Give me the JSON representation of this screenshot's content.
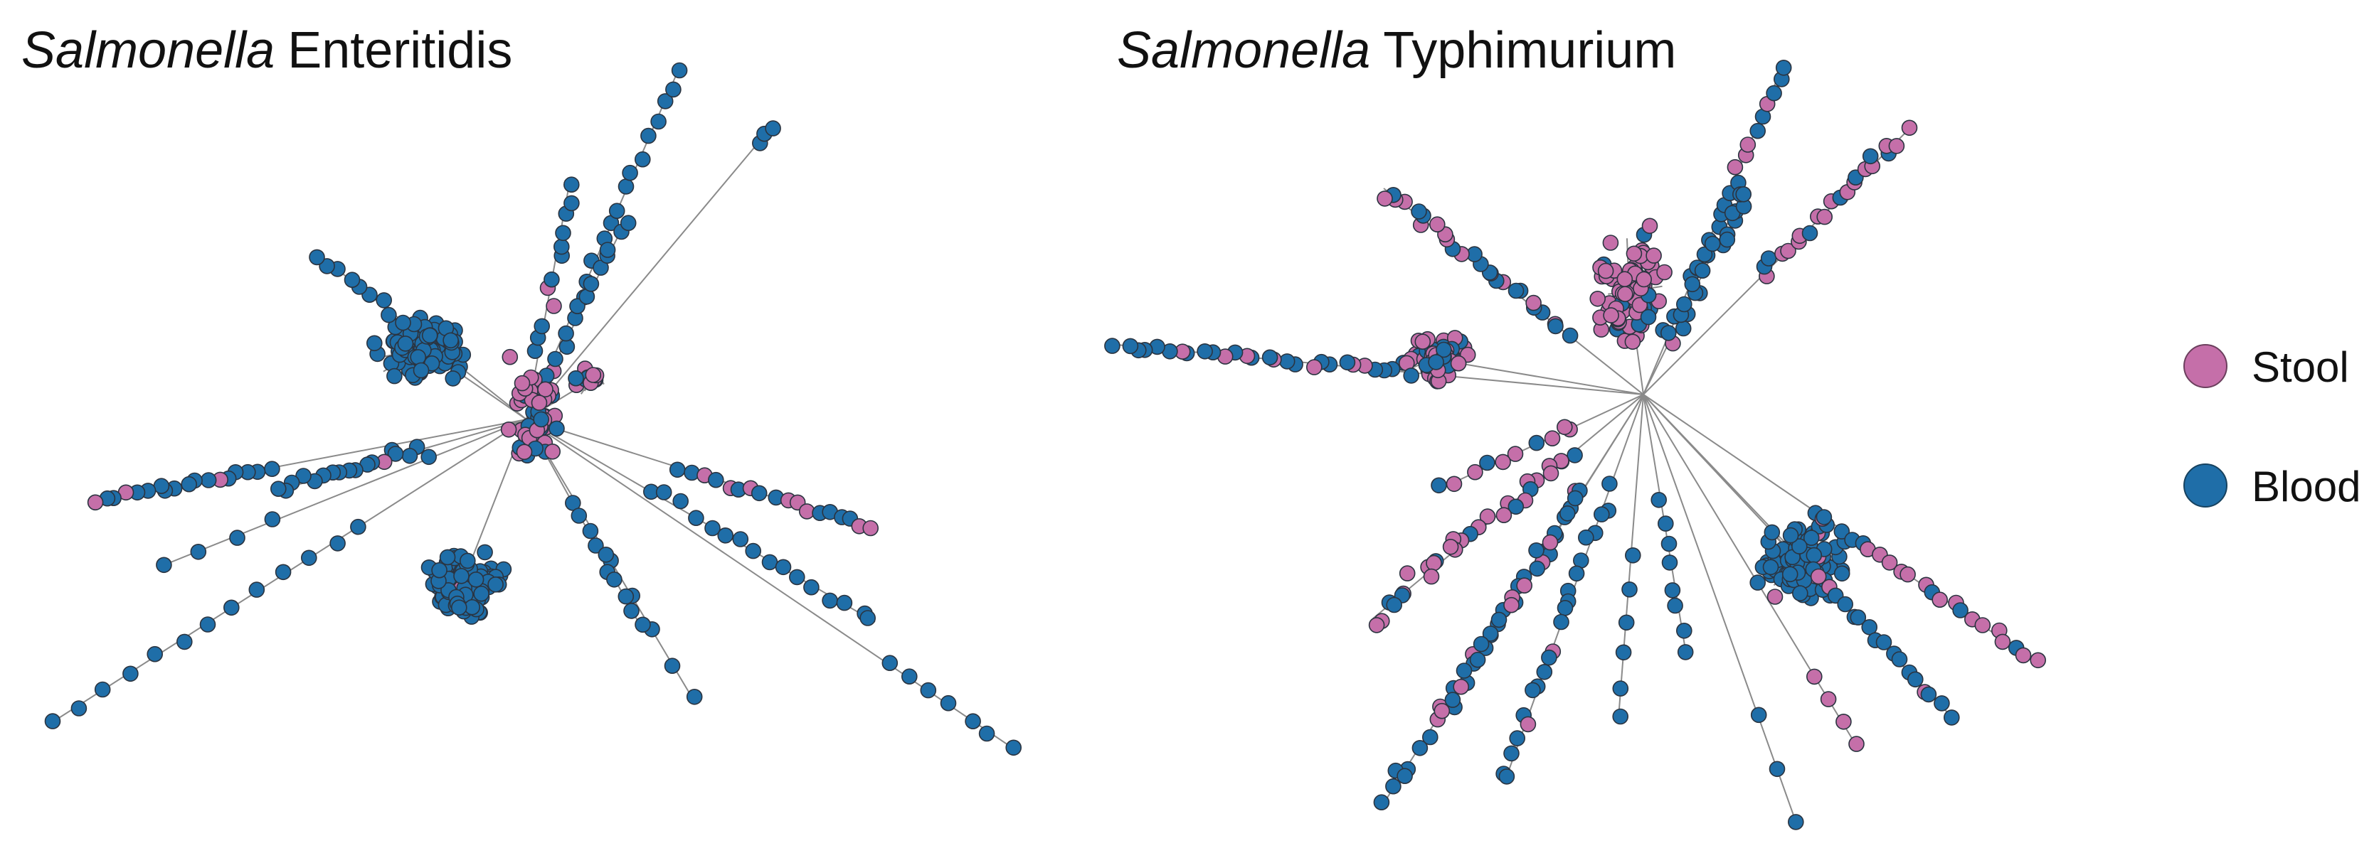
{
  "panels": [
    {
      "title_italic": "Salmonella",
      "title_rest": "Enteritidis"
    },
    {
      "title_italic": "Salmonella",
      "title_rest": "Typhimurium"
    }
  ],
  "legend": [
    {
      "label": "Stool",
      "color": "#c56fa9"
    },
    {
      "label": "Blood",
      "color": "#1f6ea8"
    }
  ],
  "colors": {
    "stool": "#c56fa9",
    "blood": "#1f6ea8",
    "node_outline": "#2b3440",
    "edge": "#8a8a8a"
  }
}
